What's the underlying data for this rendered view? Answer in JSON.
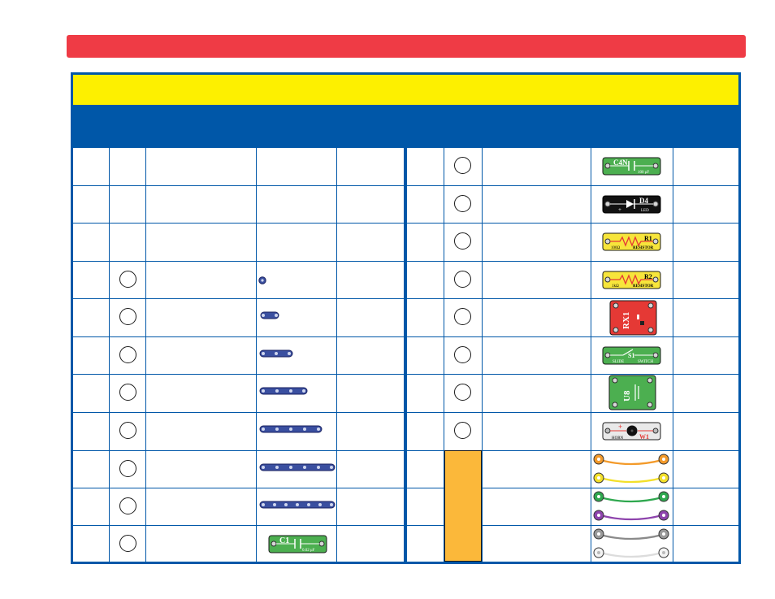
{
  "header": {
    "bar_color": "#ef3b45",
    "title_band_color": "#fdf000",
    "subheader_color": "#0057a8"
  },
  "parts_left": [
    {
      "icon": "snap-wire-1-icon",
      "qty_box": true
    },
    {
      "icon": "snap-wire-2-icon",
      "qty_box": true
    },
    {
      "icon": "snap-wire-3-icon",
      "qty_box": true
    },
    {
      "icon": "snap-wire-4-icon",
      "qty_box": true
    },
    {
      "icon": "snap-wire-5-icon",
      "qty_box": true
    },
    {
      "icon": "snap-wire-6-icon",
      "qty_box": true
    },
    {
      "icon": "snap-wire-7-icon",
      "qty_box": true
    },
    {
      "icon": "capacitor-c1-icon",
      "qty_box": true,
      "labels": [
        "C1",
        "0.02 μF"
      ]
    }
  ],
  "parts_right": [
    {
      "icon": "capacitor-c4n-icon",
      "qty_box": true,
      "labels": [
        "C4N",
        "100 μF"
      ]
    },
    {
      "icon": "led-d4-icon",
      "qty_box": true,
      "labels": [
        "D4",
        "LED"
      ]
    },
    {
      "icon": "resistor-r1-icon",
      "qty_box": true,
      "labels": [
        "R1",
        "100Ω",
        "RESISTOR"
      ]
    },
    {
      "icon": "resistor-r2-icon",
      "qty_box": true,
      "labels": [
        "R2",
        "1kΩ",
        "RESISTOR"
      ]
    },
    {
      "icon": "rx1-module-icon",
      "qty_box": true,
      "labels": [
        "RX1"
      ]
    },
    {
      "icon": "slide-switch-s1-icon",
      "qty_box": true,
      "labels": [
        "S1",
        "SLIDE",
        "SWITCH"
      ]
    },
    {
      "icon": "u8-module-icon",
      "qty_box": true,
      "labels": [
        "U8"
      ]
    },
    {
      "icon": "horn-w1-icon",
      "qty_box": true,
      "labels": [
        "+",
        "W1",
        "HORN"
      ]
    },
    {
      "icon": "jumper-wires-orange-yellow-icon",
      "qty_box": false
    },
    {
      "icon": "jumper-wires-green-purple-icon",
      "qty_box": false
    },
    {
      "icon": "jumper-wires-gray-white-icon",
      "qty_box": false
    }
  ]
}
